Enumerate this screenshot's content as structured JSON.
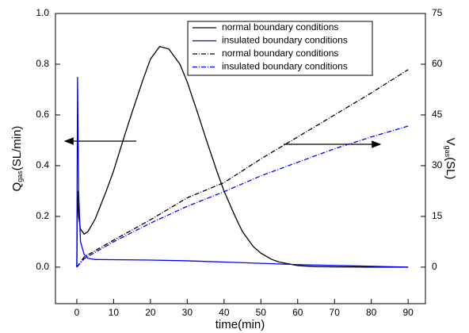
{
  "chart_data": {
    "type": "line",
    "x_label": "time(min)",
    "y_label": {
      "main": "Q",
      "sub": "gas",
      "rest": "(SL/min)"
    },
    "y2_label": {
      "main": "V",
      "sub": "gas",
      "rest": "(SL)"
    },
    "xlim": [
      -5.8,
      94.7
    ],
    "xticks": [
      0,
      10,
      20,
      30,
      40,
      50,
      60,
      70,
      80,
      90
    ],
    "ylim": [
      -0.144,
      1.0
    ],
    "yticks": [
      {
        "value": 0,
        "label": "0.0"
      },
      0.2,
      0.4,
      0.6,
      0.8,
      {
        "value": 1,
        "label": "1.0"
      }
    ],
    "y2lim": [
      -10.8,
      75
    ],
    "y2ticks": [
      0,
      15,
      30,
      45,
      60,
      75
    ],
    "legend": "top-center",
    "series": [
      {
        "name": "normal boundary conditions",
        "color": "#000000",
        "style": "solid",
        "x": [
          0,
          0.2,
          0.5,
          1,
          2,
          3,
          5,
          8,
          10,
          13,
          15,
          18,
          20,
          22.5,
          25,
          28,
          30,
          33,
          35,
          38,
          40,
          43,
          45,
          48,
          50,
          53,
          55,
          60,
          65,
          70,
          80,
          90
        ],
        "values": [
          0,
          0.3,
          0.2,
          0.15,
          0.13,
          0.14,
          0.19,
          0.3,
          0.38,
          0.52,
          0.61,
          0.74,
          0.82,
          0.87,
          0.86,
          0.8,
          0.73,
          0.6,
          0.51,
          0.38,
          0.3,
          0.2,
          0.14,
          0.08,
          0.055,
          0.03,
          0.02,
          0.006,
          0.002,
          0.001,
          0,
          0
        ]
      },
      {
        "name": "insulated boundary conditions",
        "color": "#0000ff",
        "style": "solid",
        "x": [
          0,
          0.2,
          0.5,
          1,
          2,
          3,
          5,
          20,
          30,
          40,
          50,
          60,
          75,
          90
        ],
        "values": [
          0,
          0.75,
          0.3,
          0.1,
          0.05,
          0.035,
          0.03,
          0.028,
          0.025,
          0.02,
          0.015,
          0.01,
          0.005,
          0
        ]
      },
      {
        "name": "normal boundary conditions",
        "color": "#000000",
        "style": "dashdot",
        "axis": "y2",
        "x": [
          0,
          2,
          10,
          20,
          30,
          40,
          50,
          60,
          70,
          80,
          90
        ],
        "values": [
          0,
          3,
          8,
          14,
          20.5,
          25,
          32,
          38.5,
          45,
          51.5,
          58.4
        ]
      },
      {
        "name": "insulated boundary conditions",
        "color": "#0000ff",
        "style": "dashdot",
        "axis": "y2",
        "x": [
          0,
          2,
          10,
          20,
          30,
          40,
          50,
          60,
          70,
          80,
          90
        ],
        "values": [
          0,
          2.5,
          7.5,
          13,
          18,
          22.3,
          27,
          31,
          35,
          38.5,
          41.7
        ]
      }
    ]
  }
}
